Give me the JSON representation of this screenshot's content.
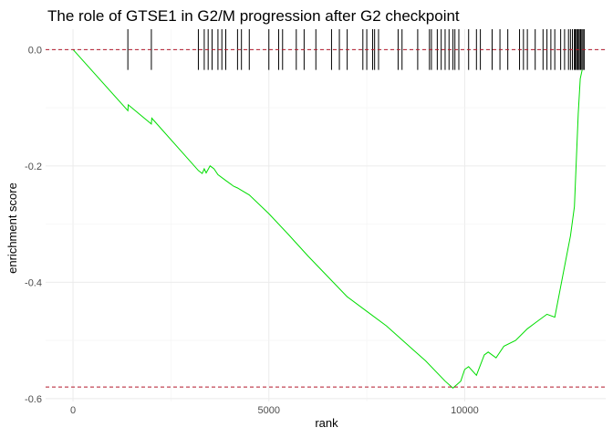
{
  "chart_data": {
    "type": "line",
    "title": "The role of GTSE1 in G2/M progression after G2 checkpoint",
    "xlabel": "rank",
    "ylabel": "enrichment score",
    "xlim": [
      -700,
      13600
    ],
    "ylim": [
      -0.605,
      0.035
    ],
    "x_ticks": [
      0,
      5000,
      10000
    ],
    "x_tick_labels": [
      "0",
      "5000",
      "10000"
    ],
    "y_ticks": [
      0.0,
      -0.2,
      -0.4,
      -0.6
    ],
    "y_tick_labels": [
      "0.0",
      "-0.2",
      "-0.4",
      "-0.6"
    ],
    "grid": true,
    "legend": "none",
    "reference_lines": [
      {
        "y": 0.0,
        "style": "dashed",
        "color": "#b2182b"
      },
      {
        "y": -0.58,
        "style": "dashed",
        "color": "#b2182b"
      }
    ],
    "series": [
      {
        "color": "#00dd00",
        "x": [
          0,
          1400,
          1410,
          2000,
          2010,
          3200,
          3300,
          3350,
          3400,
          3500,
          3600,
          3700,
          3900,
          4100,
          4200,
          4300,
          4500,
          5000,
          5500,
          6000,
          6500,
          7000,
          7500,
          8000,
          8500,
          9000,
          9500,
          9700,
          9900,
          10000,
          10100,
          10300,
          10500,
          10600,
          10800,
          11000,
          11300,
          11600,
          11800,
          12100,
          12300,
          12500,
          12700,
          12800,
          12850,
          12900,
          12950,
          13000
        ],
        "y": [
          0.0,
          -0.105,
          -0.095,
          -0.128,
          -0.118,
          -0.208,
          -0.213,
          -0.205,
          -0.212,
          -0.2,
          -0.205,
          -0.215,
          -0.225,
          -0.235,
          -0.238,
          -0.242,
          -0.25,
          -0.282,
          -0.318,
          -0.355,
          -0.39,
          -0.425,
          -0.45,
          -0.475,
          -0.505,
          -0.535,
          -0.57,
          -0.582,
          -0.57,
          -0.55,
          -0.545,
          -0.56,
          -0.525,
          -0.52,
          -0.53,
          -0.51,
          -0.5,
          -0.48,
          -0.47,
          -0.455,
          -0.46,
          -0.39,
          -0.32,
          -0.27,
          -0.19,
          -0.11,
          -0.05,
          -0.035
        ]
      }
    ],
    "rug_marks": {
      "y_top": 0.035,
      "y_bottom": -0.035,
      "x": [
        1400,
        2000,
        3200,
        3350,
        3450,
        3550,
        3700,
        3800,
        3900,
        4200,
        4300,
        4500,
        5000,
        5250,
        5350,
        5700,
        5900,
        6200,
        6600,
        6800,
        7000,
        7400,
        7500,
        7650,
        7700,
        7800,
        8300,
        8400,
        8800,
        9100,
        9150,
        9300,
        9400,
        9500,
        9600,
        9700,
        9750,
        9850,
        10100,
        10300,
        10400,
        10700,
        10900,
        11100,
        11400,
        11500,
        11600,
        11800,
        12000,
        12100,
        12200,
        12300,
        12450,
        12550,
        12650,
        12700,
        12750,
        12800,
        12820,
        12850,
        12880,
        12900,
        12930,
        12960,
        12990,
        13020,
        13050
      ]
    }
  }
}
